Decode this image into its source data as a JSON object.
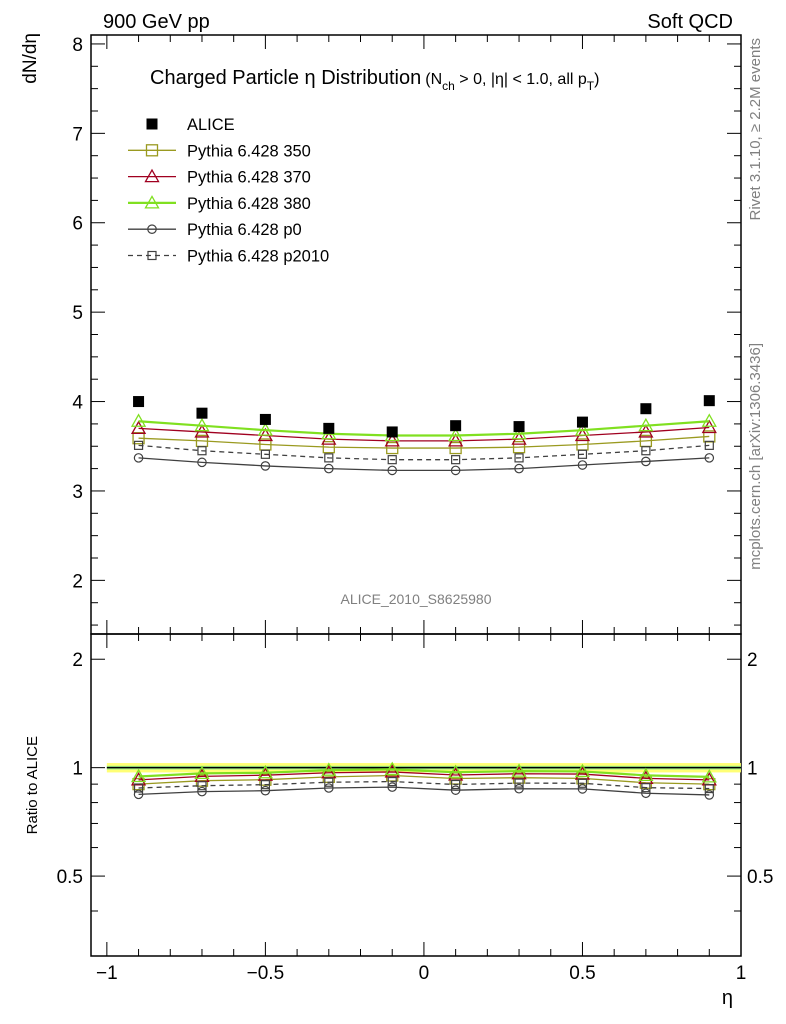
{
  "header": {
    "left_label": "900 GeV pp",
    "right_label": "Soft QCD"
  },
  "side_labels": {
    "rivet": "Rivet 3.1.10, ≥ 2.2M events",
    "mcplots": "mcplots.cern.ch [arXiv:1306.3436]"
  },
  "watermark": "ALICE_2010_S8625980",
  "chart_data": [
    {
      "panel": "main",
      "type": "line",
      "title_main": "Charged Particle η Distribution",
      "title_sub": "(N",
      "title_sub_ch": "ch",
      "title_sub_mid": " > 0, |η| < 1.0, all p",
      "title_sub_T": "T",
      "title_sub_end": ")",
      "ylabel": "dN/dη",
      "xlim": [
        -1.05,
        1.0
      ],
      "ylim": [
        1.4,
        8.1
      ],
      "yticks": [
        2,
        3,
        4,
        5,
        6,
        7,
        8
      ],
      "x": [
        -0.9,
        -0.7,
        -0.5,
        -0.3,
        -0.1,
        0.1,
        0.3,
        0.5,
        0.7,
        0.9
      ],
      "series": [
        {
          "name": "ALICE",
          "color": "#000000",
          "marker": "filled-square",
          "line": "none",
          "values": [
            4.0,
            3.87,
            3.8,
            3.7,
            3.66,
            3.73,
            3.72,
            3.77,
            3.92,
            4.01
          ]
        },
        {
          "name": "Pythia 6.428 350",
          "color": "#9a9a20",
          "marker": "open-square",
          "line": "solid",
          "values": [
            3.59,
            3.56,
            3.52,
            3.49,
            3.48,
            3.48,
            3.49,
            3.52,
            3.56,
            3.61
          ]
        },
        {
          "name": "Pythia 6.428 370",
          "color": "#a00020",
          "marker": "open-triangle",
          "line": "solid",
          "values": [
            3.7,
            3.66,
            3.62,
            3.58,
            3.56,
            3.56,
            3.58,
            3.62,
            3.66,
            3.71
          ]
        },
        {
          "name": "Pythia 6.428 380",
          "color": "#80e020",
          "marker": "open-triangle",
          "line": "solid",
          "values": [
            3.78,
            3.73,
            3.68,
            3.64,
            3.62,
            3.62,
            3.64,
            3.68,
            3.73,
            3.78
          ]
        },
        {
          "name": "Pythia 6.428 p0",
          "color": "#404040",
          "marker": "open-circle",
          "line": "solid",
          "values": [
            3.37,
            3.32,
            3.28,
            3.25,
            3.23,
            3.23,
            3.25,
            3.29,
            3.33,
            3.37
          ]
        },
        {
          "name": "Pythia 6.428 p2010",
          "color": "#404040",
          "marker": "open-square-small",
          "line": "dashed",
          "values": [
            3.51,
            3.45,
            3.41,
            3.37,
            3.35,
            3.35,
            3.37,
            3.41,
            3.45,
            3.51
          ]
        }
      ]
    },
    {
      "panel": "ratio",
      "type": "line",
      "ylabel": "Ratio to ALICE",
      "xlabel": "η",
      "xlim": [
        -1.05,
        1.0
      ],
      "ylim": [
        0.3,
        2.35
      ],
      "yscale": "log",
      "yticks": [
        0.5,
        1,
        2
      ],
      "ytick_labels": [
        "0.5",
        "1",
        "2"
      ],
      "xticks": [
        -1,
        -0.5,
        0,
        0.5,
        1
      ],
      "xtick_labels": [
        "−1",
        "−0.5",
        "0",
        "0.5",
        "1"
      ],
      "x": [
        -0.9,
        -0.7,
        -0.5,
        -0.3,
        -0.1,
        0.1,
        0.3,
        0.5,
        0.7,
        0.9
      ],
      "reference_band": {
        "color": "#ffff66",
        "inner": "#88ee88",
        "low": 0.97,
        "high": 1.03
      },
      "series": [
        {
          "name": "Pythia 6.428 350",
          "color": "#9a9a20",
          "marker": "open-square",
          "line": "solid",
          "values": [
            0.9,
            0.92,
            0.926,
            0.943,
            0.951,
            0.933,
            0.938,
            0.934,
            0.908,
            0.9
          ]
        },
        {
          "name": "Pythia 6.428 370",
          "color": "#a00020",
          "marker": "open-triangle",
          "line": "solid",
          "values": [
            0.925,
            0.946,
            0.953,
            0.968,
            0.973,
            0.954,
            0.962,
            0.96,
            0.934,
            0.925
          ]
        },
        {
          "name": "Pythia 6.428 380",
          "color": "#80e020",
          "marker": "open-triangle",
          "line": "solid",
          "values": [
            0.945,
            0.964,
            0.968,
            0.984,
            0.989,
            0.971,
            0.978,
            0.976,
            0.952,
            0.943
          ]
        },
        {
          "name": "Pythia 6.428 p0",
          "color": "#404040",
          "marker": "open-circle",
          "line": "solid",
          "values": [
            0.843,
            0.858,
            0.863,
            0.878,
            0.883,
            0.866,
            0.874,
            0.873,
            0.849,
            0.84
          ]
        },
        {
          "name": "Pythia 6.428 p2010",
          "color": "#404040",
          "marker": "open-square-small",
          "line": "dashed",
          "values": [
            0.878,
            0.891,
            0.897,
            0.911,
            0.915,
            0.898,
            0.906,
            0.905,
            0.88,
            0.875
          ]
        }
      ]
    }
  ]
}
